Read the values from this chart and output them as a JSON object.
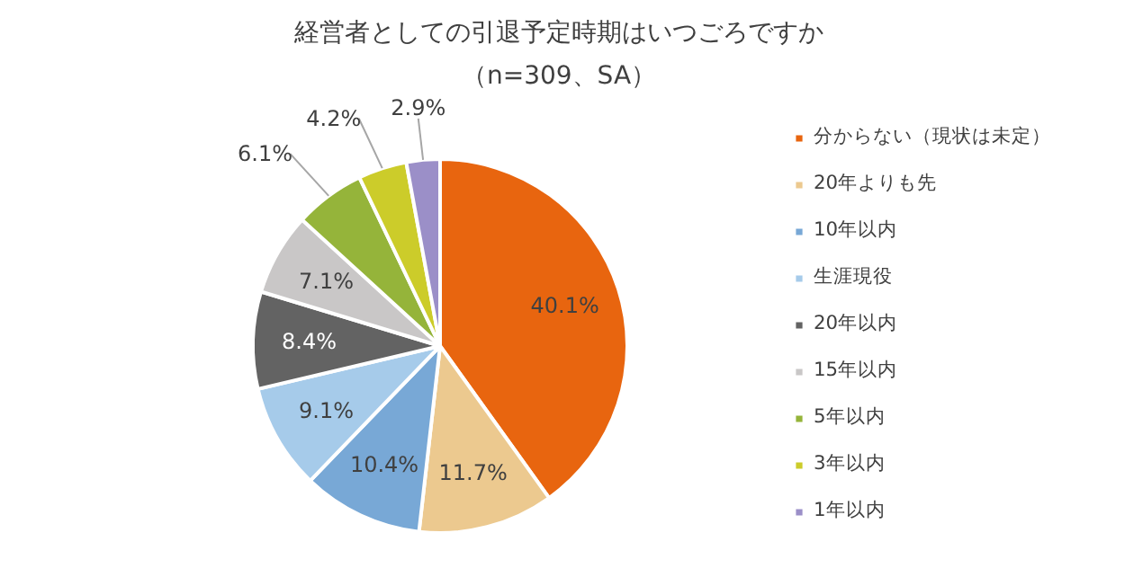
{
  "chart_data": {
    "type": "pie",
    "title": "経営者としての引退予定時期はいつごろですか",
    "subtitle": "（n=309、SA）",
    "categories": [
      "分からない（現状は未定）",
      "20年よりも先",
      "10年以内",
      "生涯現役",
      "20年以内",
      "15年以内",
      "5年以内",
      "3年以内",
      "1年以内"
    ],
    "values": [
      40.1,
      11.7,
      10.4,
      9.1,
      8.4,
      7.1,
      6.1,
      4.2,
      2.9
    ],
    "colors": [
      "#e8650f",
      "#ecc98f",
      "#78a8d6",
      "#a6cbea",
      "#636363",
      "#c9c7c7",
      "#95b43a",
      "#cccc2a",
      "#9b8fc8"
    ],
    "value_labels": [
      "40.1%",
      "11.7%",
      "10.4%",
      "9.1%",
      "8.4%",
      "7.1%",
      "6.1%",
      "4.2%",
      "2.9%"
    ],
    "legend": "right"
  }
}
